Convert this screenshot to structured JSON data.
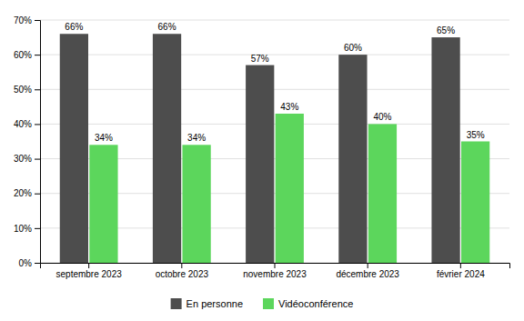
{
  "chart_data": {
    "type": "bar",
    "categories": [
      "septembre 2023",
      "octobre 2023",
      "novembre 2023",
      "décembre 2023",
      "février 2024"
    ],
    "series": [
      {
        "name": "En personne",
        "color": "#4d4d4d",
        "values": [
          66,
          66,
          57,
          60,
          65
        ],
        "value_labels": [
          "66%",
          "66%",
          "57%",
          "60%",
          "65%"
        ]
      },
      {
        "name": "Vidéoconférence",
        "color": "#5cd65c",
        "values": [
          34,
          34,
          43,
          40,
          35
        ],
        "value_labels": [
          "34%",
          "34%",
          "43%",
          "40%",
          "35%"
        ]
      }
    ],
    "ylim": [
      0,
      70
    ],
    "yticks": [
      {
        "value": 0,
        "label": "0%"
      },
      {
        "value": 10,
        "label": "10%"
      },
      {
        "value": 20,
        "label": "20%"
      },
      {
        "value": 30,
        "label": "30%"
      },
      {
        "value": 40,
        "label": "40%"
      },
      {
        "value": 50,
        "label": "50%"
      },
      {
        "value": 60,
        "label": "60%"
      },
      {
        "value": 70,
        "label": "70%"
      }
    ],
    "grid": true,
    "data_labels": true,
    "legend": "bottom"
  }
}
